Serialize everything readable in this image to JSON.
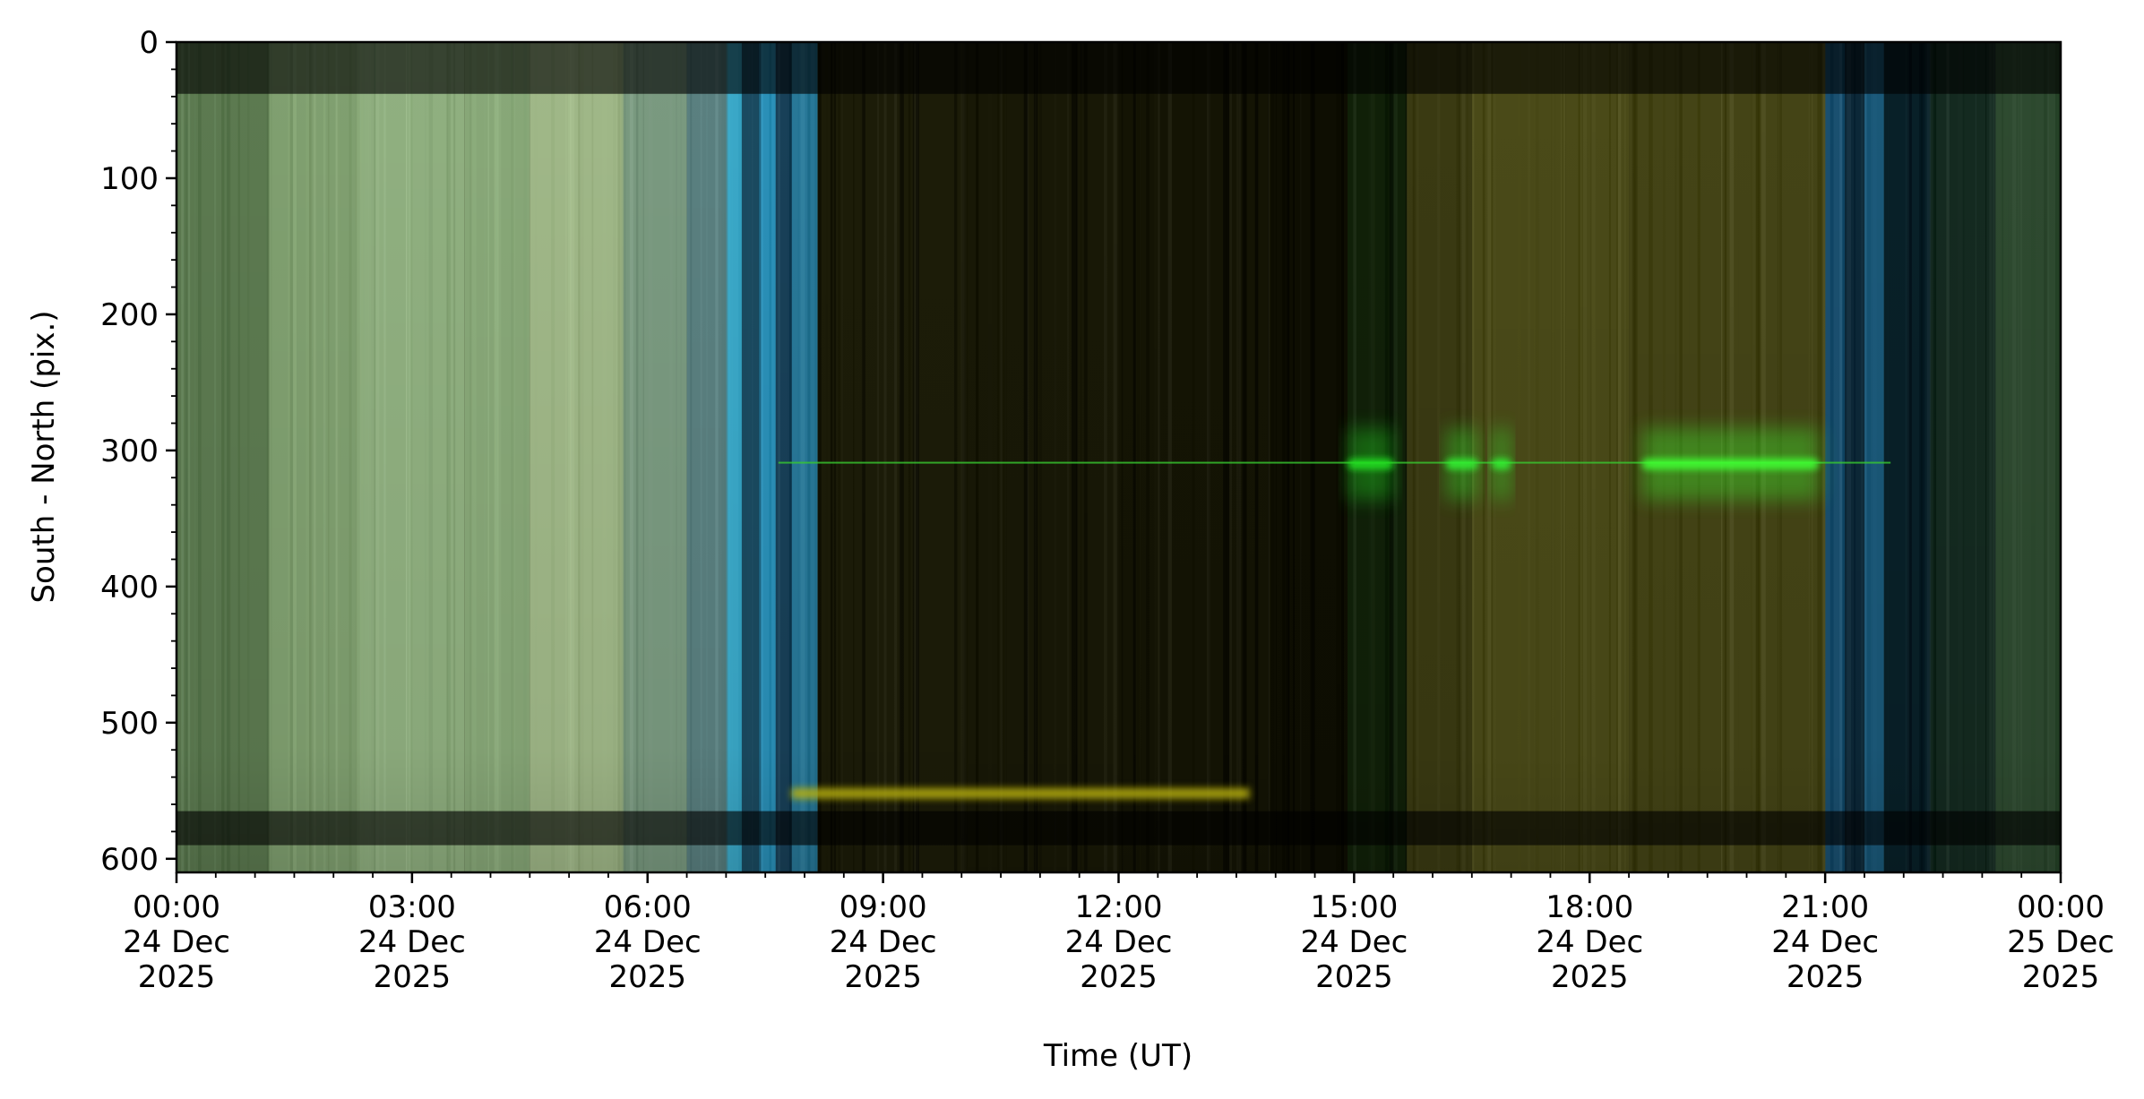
{
  "chart_data": {
    "type": "heatmap",
    "title": "",
    "xlabel": "Time (UT)",
    "ylabel": "South - North (pix.)",
    "xlim": [
      "2025-12-24T00:00",
      "2025-12-25T00:00"
    ],
    "ylim": [
      610,
      0
    ],
    "y_inverted": true,
    "grid": false,
    "y_ticks": [
      {
        "value": 0,
        "label": "0"
      },
      {
        "value": 100,
        "label": "100"
      },
      {
        "value": 200,
        "label": "200"
      },
      {
        "value": 300,
        "label": "300"
      },
      {
        "value": 400,
        "label": "400"
      },
      {
        "value": 500,
        "label": "500"
      },
      {
        "value": 600,
        "label": "600"
      }
    ],
    "x_ticks": [
      {
        "value": "2025-12-24T00:00",
        "lines": [
          "00:00",
          "24 Dec",
          "2025"
        ]
      },
      {
        "value": "2025-12-24T03:00",
        "lines": [
          "03:00",
          "24 Dec",
          "2025"
        ]
      },
      {
        "value": "2025-12-24T06:00",
        "lines": [
          "06:00",
          "24 Dec",
          "2025"
        ]
      },
      {
        "value": "2025-12-24T09:00",
        "lines": [
          "09:00",
          "24 Dec",
          "2025"
        ]
      },
      {
        "value": "2025-12-24T12:00",
        "lines": [
          "12:00",
          "24 Dec",
          "2025"
        ]
      },
      {
        "value": "2025-12-24T15:00",
        "lines": [
          "15:00",
          "24 Dec",
          "2025"
        ]
      },
      {
        "value": "2025-12-24T18:00",
        "lines": [
          "18:00",
          "24 Dec",
          "2025"
        ]
      },
      {
        "value": "2025-12-24T21:00",
        "lines": [
          "21:00",
          "24 Dec",
          "2025"
        ]
      },
      {
        "value": "2025-12-25T00:00",
        "lines": [
          "00:00",
          "25 Dec",
          "2025"
        ]
      }
    ],
    "segments": [
      {
        "start": "2025-12-24T00:00",
        "end": "2025-12-24T01:10",
        "color": "#5c7a50"
      },
      {
        "start": "2025-12-24T01:10",
        "end": "2025-12-24T02:20",
        "color": "#80a070"
      },
      {
        "start": "2025-12-24T02:20",
        "end": "2025-12-24T03:40",
        "color": "#90b080"
      },
      {
        "start": "2025-12-24T03:40",
        "end": "2025-12-24T04:30",
        "color": "#88a878"
      },
      {
        "start": "2025-12-24T04:30",
        "end": "2025-12-24T05:40",
        "color": "#a0b888"
      },
      {
        "start": "2025-12-24T05:40",
        "end": "2025-12-24T06:30",
        "color": "#7a9a80"
      },
      {
        "start": "2025-12-24T06:30",
        "end": "2025-12-24T07:00",
        "color": "#5a8080"
      },
      {
        "start": "2025-12-24T07:00",
        "end": "2025-12-24T07:12",
        "color": "#3aa8c8"
      },
      {
        "start": "2025-12-24T07:12",
        "end": "2025-12-24T07:25",
        "color": "#1a4a60"
      },
      {
        "start": "2025-12-24T07:25",
        "end": "2025-12-24T07:38",
        "color": "#2a90b8"
      },
      {
        "start": "2025-12-24T07:38",
        "end": "2025-12-24T07:50",
        "color": "#184058"
      },
      {
        "start": "2025-12-24T07:50",
        "end": "2025-12-24T08:10",
        "color": "#287898"
      },
      {
        "start": "2025-12-24T08:10",
        "end": "2025-12-24T10:00",
        "color": "#1c1c08"
      },
      {
        "start": "2025-12-24T10:00",
        "end": "2025-12-24T12:00",
        "color": "#181806"
      },
      {
        "start": "2025-12-24T12:00",
        "end": "2025-12-24T14:00",
        "color": "#141404"
      },
      {
        "start": "2025-12-24T14:00",
        "end": "2025-12-24T14:55",
        "color": "#0e0e02"
      },
      {
        "start": "2025-12-24T14:55",
        "end": "2025-12-24T15:40",
        "color": "#102008"
      },
      {
        "start": "2025-12-24T15:40",
        "end": "2025-12-24T16:30",
        "color": "#3a3a12"
      },
      {
        "start": "2025-12-24T16:30",
        "end": "2025-12-24T18:30",
        "color": "#4a4a18"
      },
      {
        "start": "2025-12-24T18:30",
        "end": "2025-12-24T21:00",
        "color": "#444416"
      },
      {
        "start": "2025-12-24T21:00",
        "end": "2025-12-24T21:15",
        "color": "#1a5070"
      },
      {
        "start": "2025-12-24T21:15",
        "end": "2025-12-24T21:30",
        "color": "#0c2838"
      },
      {
        "start": "2025-12-24T21:30",
        "end": "2025-12-24T21:45",
        "color": "#1a5878"
      },
      {
        "start": "2025-12-24T21:45",
        "end": "2025-12-24T22:20",
        "color": "#082028"
      },
      {
        "start": "2025-12-24T22:20",
        "end": "2025-12-24T23:10",
        "color": "#142a20"
      },
      {
        "start": "2025-12-24T23:10",
        "end": "2025-12-25T00:00",
        "color": "#2e4a30"
      }
    ],
    "dark_bands": [
      {
        "y_start": 0,
        "y_end": 38
      },
      {
        "y_start": 565,
        "y_end": 590
      }
    ],
    "features": {
      "green_line": {
        "y": 309,
        "start": "2025-12-24T07:40",
        "end": "2025-12-24T21:50",
        "color": "#38c830"
      },
      "green_blobs": [
        {
          "start": "2025-12-24T14:55",
          "end": "2025-12-24T15:30",
          "y": 310,
          "color": "#20e020"
        },
        {
          "start": "2025-12-24T16:10",
          "end": "2025-12-24T16:35",
          "y": 310,
          "color": "#30f030"
        },
        {
          "start": "2025-12-24T16:45",
          "end": "2025-12-24T17:00",
          "y": 310,
          "color": "#30f030"
        },
        {
          "start": "2025-12-24T18:40",
          "end": "2025-12-24T20:55",
          "y": 310,
          "color": "#40ff30"
        }
      ],
      "yellow_band": {
        "y": 552,
        "start": "2025-12-24T07:50",
        "end": "2025-12-24T13:40",
        "color": "#b8b010"
      }
    }
  }
}
